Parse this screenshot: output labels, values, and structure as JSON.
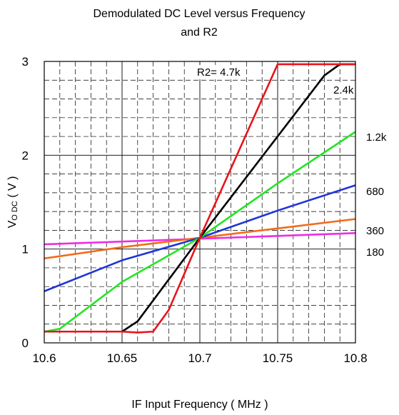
{
  "chart_data": {
    "type": "line",
    "title_lines": [
      "Demodulated DC Level  versus Frequency",
      "and R2"
    ],
    "xlabel": "IF Input Frequency ( MHz )",
    "ylabel": {
      "main": "V",
      "sub": "O DC",
      "rest": " ( V )"
    },
    "xlim": [
      10.6,
      10.8
    ],
    "ylim": [
      0,
      3
    ],
    "xticks": [
      10.6,
      10.65,
      10.7,
      10.75,
      10.8
    ],
    "xtick_labels": [
      "10.6",
      "10.65",
      "10.7",
      "10.75",
      "10.8"
    ],
    "yticks": [
      0,
      1,
      2,
      3
    ],
    "ytick_labels": [
      "0",
      "1",
      "2",
      "3"
    ],
    "grid": true,
    "series": [
      {
        "name": "R2= 4.7k",
        "color": "#e8141b",
        "x": [
          10.6,
          10.65,
          10.66,
          10.67,
          10.68,
          10.7,
          10.75,
          10.8
        ],
        "y": [
          0.12,
          0.12,
          0.11,
          0.12,
          0.35,
          1.12,
          2.97,
          2.97
        ]
      },
      {
        "name": "2.4k",
        "color": "#000000",
        "x": [
          10.6,
          10.65,
          10.66,
          10.7,
          10.78,
          10.79,
          10.8
        ],
        "y": [
          0.12,
          0.12,
          0.23,
          1.12,
          2.85,
          2.97,
          2.97
        ]
      },
      {
        "name": "1.2k",
        "color": "#22e522",
        "x": [
          10.6,
          10.61,
          10.65,
          10.7,
          10.75,
          10.8
        ],
        "y": [
          0.12,
          0.15,
          0.65,
          1.12,
          1.7,
          2.25
        ]
      },
      {
        "name": "680",
        "color": "#1f35d6",
        "x": [
          10.6,
          10.65,
          10.7,
          10.75,
          10.8
        ],
        "y": [
          0.55,
          0.88,
          1.12,
          1.41,
          1.68
        ]
      },
      {
        "name": "360",
        "color": "#f26c1a",
        "x": [
          10.6,
          10.65,
          10.7,
          10.75,
          10.8
        ],
        "y": [
          0.9,
          1.02,
          1.12,
          1.22,
          1.32
        ]
      },
      {
        "name": "180",
        "color": "#ee2ce6",
        "x": [
          10.6,
          10.65,
          10.7,
          10.75,
          10.8
        ],
        "y": [
          1.05,
          1.08,
          1.11,
          1.14,
          1.17
        ]
      }
    ]
  }
}
